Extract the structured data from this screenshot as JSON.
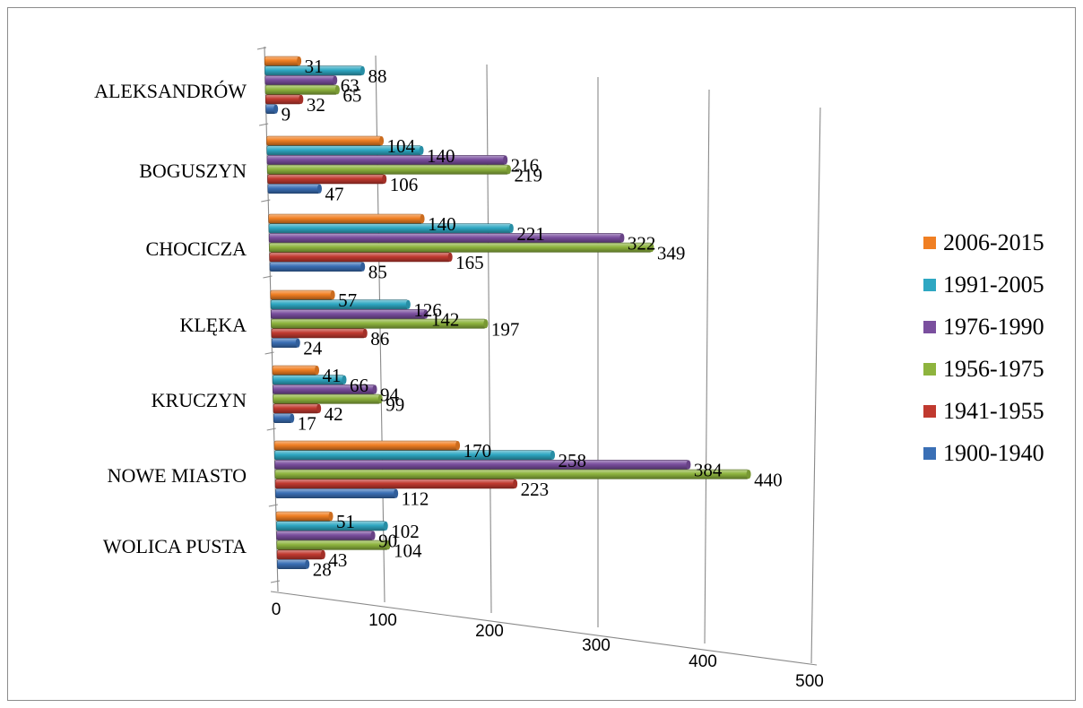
{
  "chart_data": {
    "type": "bar",
    "orientation": "horizontal",
    "style": "3d-clustered",
    "categories": [
      "ALEKSANDRÓW",
      "BOGUSZYN",
      "CHOCICZA",
      "KLĘKA",
      "KRUCZYN",
      "NOWE MIASTO",
      "WOLICA PUSTA"
    ],
    "series": [
      {
        "name": "2006-2015",
        "color": "#f07f23",
        "values": [
          31,
          104,
          140,
          57,
          41,
          170,
          51
        ]
      },
      {
        "name": "1991-2005",
        "color": "#2ea7c2",
        "values": [
          88,
          140,
          221,
          126,
          66,
          258,
          102
        ]
      },
      {
        "name": "1976-1990",
        "color": "#7a4f9e",
        "values": [
          63,
          216,
          322,
          142,
          94,
          384,
          90
        ]
      },
      {
        "name": "1956-1975",
        "color": "#8eb43e",
        "values": [
          65,
          219,
          349,
          197,
          99,
          440,
          104
        ]
      },
      {
        "name": "1941-1955",
        "color": "#c0392f",
        "values": [
          32,
          106,
          165,
          86,
          42,
          223,
          43
        ]
      },
      {
        "name": "1900-1940",
        "color": "#3a6fb5",
        "values": [
          9,
          47,
          85,
          24,
          17,
          112,
          28
        ]
      }
    ],
    "xlim": [
      0,
      500
    ],
    "x_ticks": [
      "0",
      "100",
      "200",
      "300",
      "400",
      "500"
    ],
    "grid": true,
    "legend_position": "right"
  }
}
